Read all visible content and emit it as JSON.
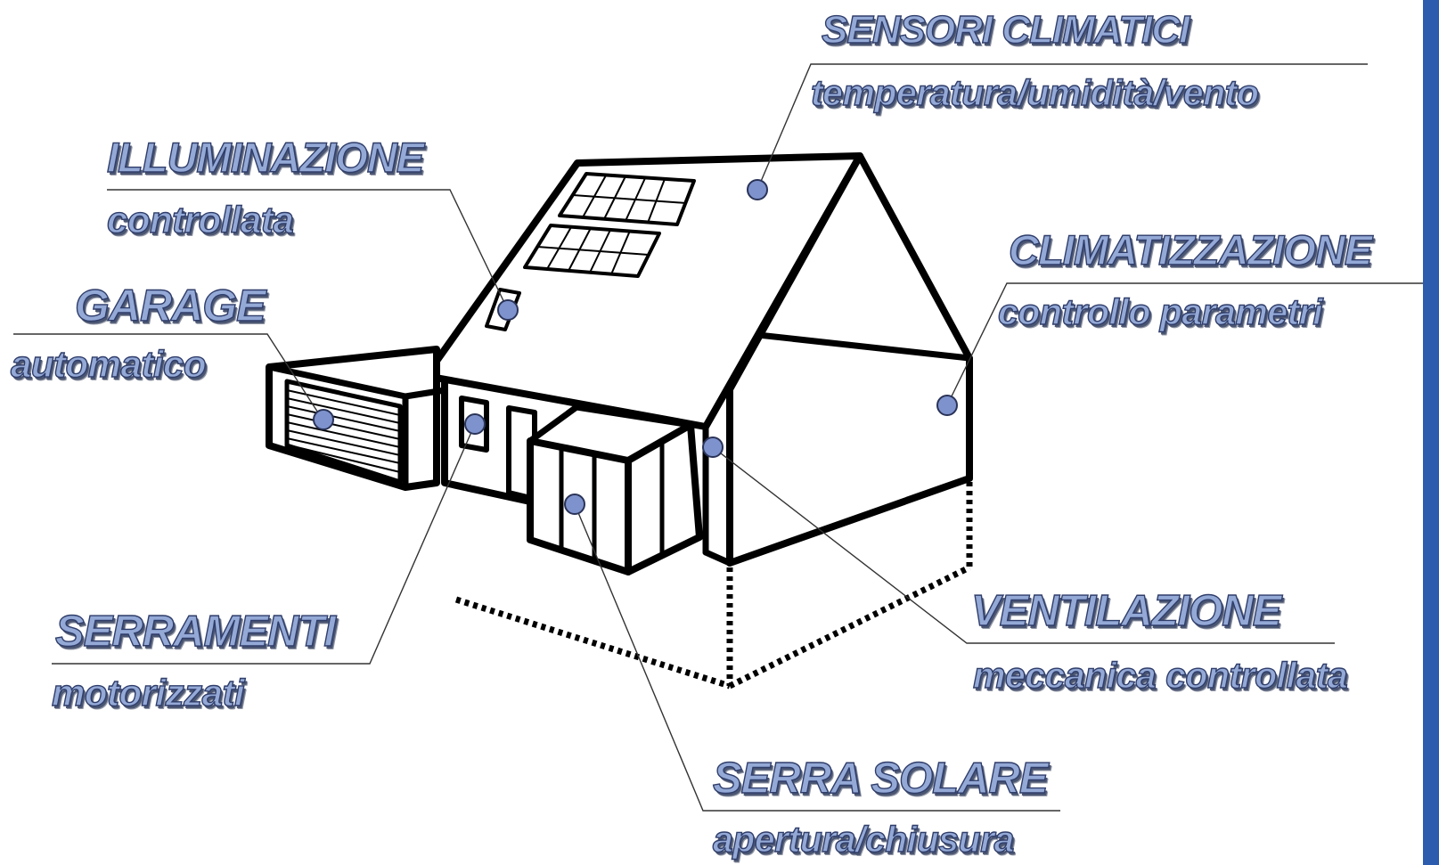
{
  "colors": {
    "outline": "#000000",
    "leader_line": "#333333",
    "marker_fill": "#7e93cd",
    "marker_stroke": "#2a3358",
    "label_fill": "#94a9d6",
    "label_stroke": "#2f3d6a",
    "side_bar": "#2b5cae"
  },
  "labels": {
    "sensori": {
      "title": "SENSORI CLIMATICI",
      "sub": "temperatura/umidità/vento"
    },
    "illuminazione": {
      "title": "ILLUMINAZIONE",
      "sub": "controllata"
    },
    "garage": {
      "title": "GARAGE",
      "sub": "automatico"
    },
    "climatizzazione": {
      "title": "CLIMATIZZAZIONE",
      "sub": "controllo parametri"
    },
    "serramenti": {
      "title": "SERRAMENTI",
      "sub": "motorizzati"
    },
    "ventilazione": {
      "title": "VENTILAZIONE",
      "sub": "meccanica controllata"
    },
    "serra": {
      "title": "SERRA SOLARE",
      "sub": "apertura/chiusura"
    }
  }
}
